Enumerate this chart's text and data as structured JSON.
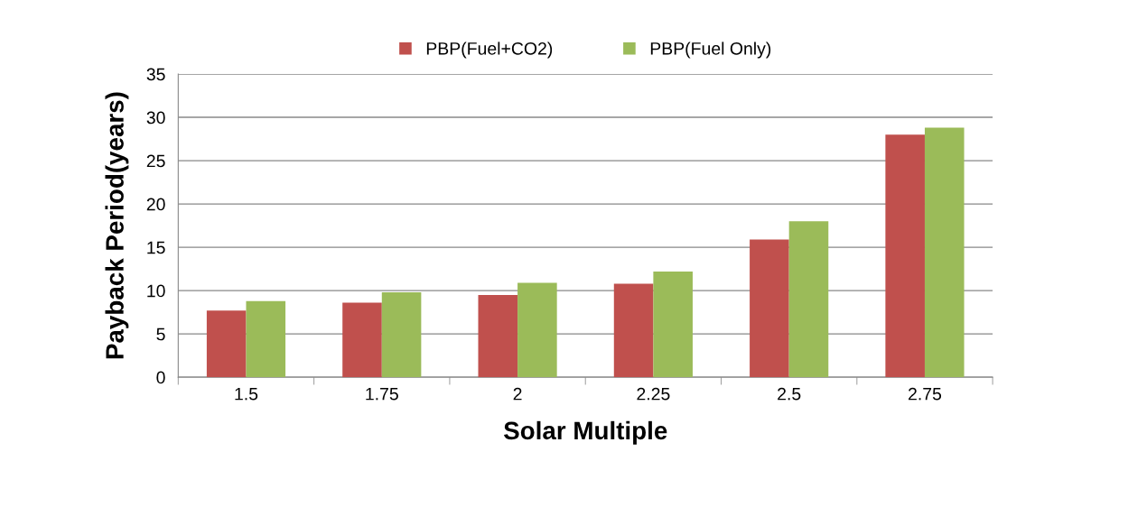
{
  "chart_data": {
    "type": "bar",
    "xlabel": "Solar Multiple",
    "ylabel": "Payback Period(years)",
    "categories": [
      "1.5",
      "1.75",
      "2",
      "2.25",
      "2.5",
      "2.75"
    ],
    "series": [
      {
        "name": "PBP(Fuel+CO2)",
        "color": "#c0504d",
        "values": [
          7.7,
          8.6,
          9.5,
          10.8,
          15.9,
          28.0
        ]
      },
      {
        "name": "PBP(Fuel Only)",
        "color": "#9bbb59",
        "values": [
          8.8,
          9.8,
          10.9,
          12.2,
          18.0,
          28.8
        ]
      }
    ],
    "ylim": [
      0,
      35
    ],
    "yticks": [
      0,
      5,
      10,
      15,
      20,
      25,
      30,
      35
    ],
    "grid": "y",
    "legend": "top"
  }
}
